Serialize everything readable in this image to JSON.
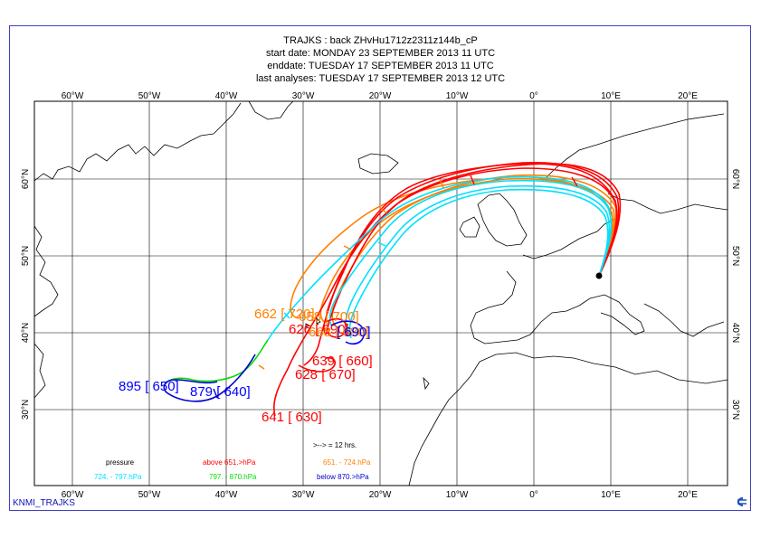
{
  "title": {
    "line1": "TRAJKS : back ZHvHu1712z2311z144b_cP",
    "line2": "start date:  MONDAY    23 SEPTEMBER 2013 11 UTC",
    "line3": "enddate:  TUESDAY   17 SEPTEMBER 2013 11 UTC",
    "line4": "last analyses:  TUESDAY   17 SEPTEMBER 2013 12 UTC"
  },
  "axes": {
    "lon_labels": [
      "60°W",
      "50°W",
      "40°W",
      "30°W",
      "20°W",
      "10°W",
      "0°",
      "10°E",
      "20°E"
    ],
    "lat_labels": [
      "30°N",
      "40°N",
      "50°N",
      "60°N"
    ]
  },
  "trajectory_labels": [
    {
      "text": "662 [ 720]",
      "color": "#ff8000"
    },
    {
      "text": "658 [ 700]",
      "color": "#ff8000"
    },
    {
      "text": "626 [ 690]",
      "color": "#ff0000"
    },
    {
      "text": "668 [ 680]",
      "color": "#ff8000"
    },
    {
      "text": "[ 690]",
      "color": "#0000ff"
    },
    {
      "text": "639 [ 660]",
      "color": "#ff0000"
    },
    {
      "text": "628 [ 670]",
      "color": "#ff0000"
    },
    {
      "text": "641 [ 630]",
      "color": "#ff0000"
    },
    {
      "text": "895 [ 650]",
      "color": "#0000ff"
    },
    {
      "text": "879 [ 640]",
      "color": "#0000ff"
    }
  ],
  "legend": {
    "step_note": ">-->  = 12 hrs.",
    "pressure_label": "pressure",
    "classes": [
      {
        "text": "above   651.>hPa",
        "color": "#ff0000"
      },
      {
        "text": "651. -    724.hPa",
        "color": "#ff8000"
      },
      {
        "text": "724. -    797.hPa",
        "color": "#00e0ff"
      },
      {
        "text": "797. -    870.hPa",
        "color": "#00dd00"
      },
      {
        "text": "below   870.>hPa",
        "color": "#0000cc"
      }
    ]
  },
  "footer": {
    "source": "KNMI_TRAJKS"
  },
  "colors": {
    "frame": "#4040c0",
    "grid": "#000000",
    "coast": "#000000"
  }
}
